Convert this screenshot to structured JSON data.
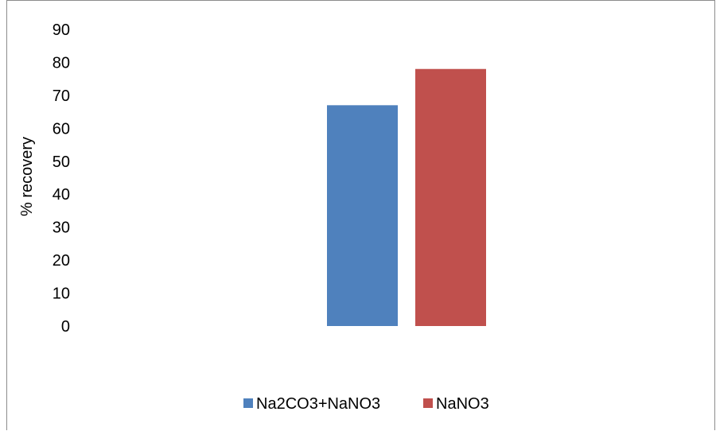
{
  "chart_data": {
    "type": "bar",
    "categories": [
      ""
    ],
    "series": [
      {
        "name": "Na2CO3+NaNO3",
        "values": [
          67
        ],
        "color": "#4F81BD"
      },
      {
        "name": "NaNO3",
        "values": [
          78
        ],
        "color": "#C0504D"
      }
    ],
    "title": "",
    "xlabel": "",
    "ylabel": "% recovery",
    "ylim": [
      0,
      90
    ],
    "yticks": [
      0,
      10,
      20,
      30,
      40,
      50,
      60,
      70,
      80,
      90
    ],
    "grid": false,
    "legend_position": "bottom"
  }
}
